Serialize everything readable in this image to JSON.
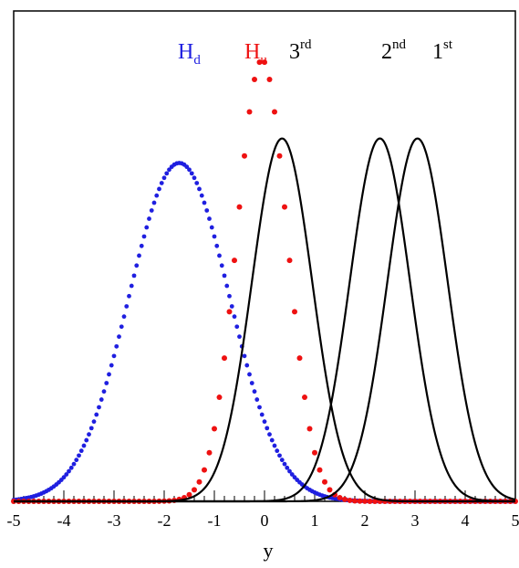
{
  "chart_data": {
    "type": "line",
    "xlabel": "y",
    "ylabel": "",
    "xlim": [
      -5,
      5
    ],
    "ylim": [
      0,
      1.0
    ],
    "x_ticks": [
      -5,
      -4,
      -3,
      -2,
      -1,
      0,
      1,
      2,
      3,
      4,
      5
    ],
    "x_tick_labels": [
      "-5",
      "-4",
      "-3",
      "-2",
      "-1",
      "0",
      "1",
      "2",
      "3",
      "4",
      "5"
    ],
    "grid": false,
    "series": [
      {
        "name": "H_d",
        "label_main": "H",
        "label_sub": "d",
        "color": "#1f1fe0",
        "style": "dotted-dense",
        "mean": -1.7,
        "sigma": 1.0,
        "peak": 0.69
      },
      {
        "name": "H_u",
        "label_main": "H",
        "label_sub": "u",
        "color": "#ee1111",
        "style": "dotted",
        "mean": -0.05,
        "sigma": 0.5,
        "peak": 0.9
      },
      {
        "name": "3rd",
        "label_main": "3",
        "label_sub": "rd",
        "color": "#000000",
        "style": "solid",
        "mean": 0.35,
        "sigma": 0.6,
        "peak": 0.74
      },
      {
        "name": "2nd",
        "label_main": "2",
        "label_sub": "nd",
        "color": "#000000",
        "style": "solid",
        "mean": 2.3,
        "sigma": 0.6,
        "peak": 0.74
      },
      {
        "name": "1st",
        "label_main": "1",
        "label_sub": "st",
        "color": "#000000",
        "style": "solid",
        "mean": 3.05,
        "sigma": 0.6,
        "peak": 0.74
      }
    ]
  }
}
